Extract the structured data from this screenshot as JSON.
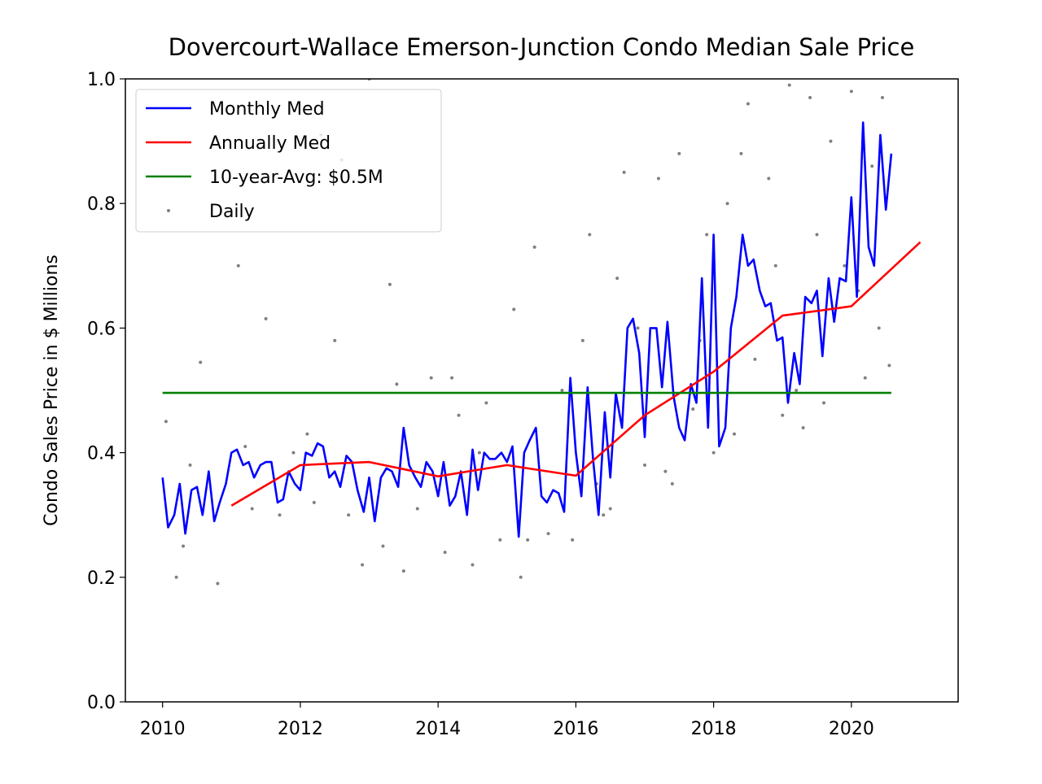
{
  "chart_data": {
    "type": "line",
    "title": "Dovercourt-Wallace Emerson-Junction Condo Median Sale Price",
    "ylabel": "Condo Sales Price in $ Millions",
    "xlim": [
      2009.46,
      2021.55
    ],
    "ylim": [
      0,
      1
    ],
    "xticks": [
      2010,
      2012,
      2014,
      2016,
      2018,
      2020
    ],
    "yticks": [
      {
        "value": 0,
        "label": "0.0"
      },
      0.2,
      0.4,
      0.6,
      0.8,
      {
        "value": 1,
        "label": "1.0"
      }
    ],
    "legend": "upper left",
    "series": [
      {
        "name": "Monthly Med",
        "color": "#0000ff",
        "x": [
          2010.0,
          2010.08,
          2010.17,
          2010.25,
          2010.33,
          2010.42,
          2010.5,
          2010.58,
          2010.67,
          2010.75,
          2010.83,
          2010.92,
          2011.0,
          2011.08,
          2011.17,
          2011.25,
          2011.33,
          2011.42,
          2011.5,
          2011.58,
          2011.67,
          2011.75,
          2011.83,
          2011.92,
          2012.0,
          2012.08,
          2012.17,
          2012.25,
          2012.33,
          2012.42,
          2012.5,
          2012.58,
          2012.67,
          2012.75,
          2012.83,
          2012.92,
          2013.0,
          2013.08,
          2013.17,
          2013.25,
          2013.33,
          2013.42,
          2013.5,
          2013.58,
          2013.67,
          2013.75,
          2013.83,
          2013.92,
          2014.0,
          2014.08,
          2014.17,
          2014.25,
          2014.33,
          2014.42,
          2014.5,
          2014.58,
          2014.67,
          2014.75,
          2014.83,
          2014.92,
          2015.0,
          2015.08,
          2015.17,
          2015.25,
          2015.33,
          2015.42,
          2015.5,
          2015.58,
          2015.67,
          2015.75,
          2015.83,
          2015.92,
          2016.0,
          2016.08,
          2016.17,
          2016.25,
          2016.33,
          2016.42,
          2016.5,
          2016.58,
          2016.67,
          2016.75,
          2016.83,
          2016.92,
          2017.0,
          2017.08,
          2017.17,
          2017.25,
          2017.33,
          2017.42,
          2017.5,
          2017.58,
          2017.67,
          2017.75,
          2017.83,
          2017.92,
          2018.0,
          2018.08,
          2018.17,
          2018.25,
          2018.33,
          2018.42,
          2018.5,
          2018.58,
          2018.67,
          2018.75,
          2018.83,
          2018.92,
          2019.0,
          2019.08,
          2019.17,
          2019.25,
          2019.33,
          2019.42,
          2019.5,
          2019.58,
          2019.67,
          2019.75,
          2019.83,
          2019.92,
          2020.0,
          2020.08,
          2020.17,
          2020.25,
          2020.33,
          2020.42,
          2020.5,
          2020.58
        ],
        "values": [
          0.36,
          0.28,
          0.3,
          0.35,
          0.27,
          0.34,
          0.345,
          0.3,
          0.37,
          0.29,
          0.32,
          0.35,
          0.4,
          0.405,
          0.38,
          0.385,
          0.36,
          0.38,
          0.385,
          0.385,
          0.32,
          0.325,
          0.37,
          0.35,
          0.34,
          0.4,
          0.395,
          0.415,
          0.41,
          0.36,
          0.37,
          0.345,
          0.395,
          0.385,
          0.34,
          0.305,
          0.36,
          0.29,
          0.36,
          0.375,
          0.37,
          0.345,
          0.44,
          0.38,
          0.36,
          0.345,
          0.385,
          0.37,
          0.33,
          0.385,
          0.315,
          0.33,
          0.37,
          0.3,
          0.405,
          0.34,
          0.4,
          0.39,
          0.39,
          0.4,
          0.385,
          0.41,
          0.265,
          0.4,
          0.42,
          0.44,
          0.33,
          0.32,
          0.34,
          0.335,
          0.305,
          0.52,
          0.4,
          0.33,
          0.505,
          0.39,
          0.3,
          0.465,
          0.36,
          0.495,
          0.44,
          0.6,
          0.615,
          0.56,
          0.425,
          0.6,
          0.6,
          0.505,
          0.61,
          0.49,
          0.44,
          0.42,
          0.51,
          0.48,
          0.68,
          0.44,
          0.75,
          0.41,
          0.44,
          0.6,
          0.65,
          0.75,
          0.7,
          0.71,
          0.66,
          0.635,
          0.64,
          0.58,
          0.585,
          0.48,
          0.56,
          0.51,
          0.65,
          0.64,
          0.66,
          0.555,
          0.68,
          0.61,
          0.68,
          0.675,
          0.81,
          0.65,
          0.93,
          0.73,
          0.7,
          0.91,
          0.79,
          0.88
        ]
      },
      {
        "name": "Annually Med",
        "color": "#ff0000",
        "x": [
          2011,
          2012,
          2013,
          2014,
          2015,
          2016,
          2017,
          2018,
          2019,
          2020,
          2021
        ],
        "values": [
          0.315,
          0.38,
          0.385,
          0.362,
          0.38,
          0.363,
          0.46,
          0.53,
          0.62,
          0.635,
          0.738
        ]
      },
      {
        "name": "10-year-Avg: $0.5M",
        "color": "#008000",
        "x": [
          2010,
          2020.58
        ],
        "values": [
          0.496,
          0.496
        ]
      },
      {
        "name": "Daily",
        "color": "#808080",
        "marker": "o",
        "x": [
          2010.05,
          2010.2,
          2010.4,
          2010.55,
          2010.8,
          2011.1,
          2011.3,
          2011.5,
          2011.7,
          2011.9,
          2012.1,
          2012.3,
          2012.5,
          2012.7,
          2012.9,
          2013.0,
          2013.2,
          2013.3,
          2013.5,
          2013.7,
          2013.9,
          2014.1,
          2014.3,
          2014.5,
          2014.7,
          2014.9,
          2015.1,
          2015.2,
          2015.4,
          2015.6,
          2015.8,
          2015.95,
          2016.1,
          2016.2,
          2016.4,
          2016.6,
          2016.7,
          2016.9,
          2017.0,
          2017.2,
          2017.4,
          2017.5,
          2017.7,
          2017.9,
          2018.0,
          2018.2,
          2018.3,
          2018.5,
          2018.6,
          2018.8,
          2019.0,
          2019.1,
          2019.3,
          2019.4,
          2019.6,
          2019.7,
          2019.9,
          2020.0,
          2020.2,
          2020.3,
          2020.45,
          2020.55,
          2010.3,
          2011.2,
          2012.2,
          2013.4,
          2014.2,
          2015.3,
          2016.3,
          2017.3,
          2018.4,
          2019.2,
          2020.1,
          2012.6,
          2014.6,
          2016.5,
          2017.8,
          2018.9,
          2019.5,
          2020.4
        ],
        "values": [
          0.45,
          0.2,
          0.38,
          0.545,
          0.19,
          0.7,
          0.31,
          0.615,
          0.3,
          0.4,
          0.43,
          0.91,
          0.58,
          0.3,
          0.22,
          1.0,
          0.25,
          0.67,
          0.21,
          0.31,
          0.52,
          0.24,
          0.46,
          0.22,
          0.48,
          0.26,
          0.63,
          0.2,
          0.73,
          0.27,
          0.5,
          0.26,
          0.58,
          0.75,
          0.3,
          0.68,
          0.85,
          0.6,
          0.38,
          0.84,
          0.35,
          0.88,
          0.47,
          0.75,
          0.4,
          0.8,
          0.43,
          0.96,
          0.55,
          0.84,
          0.46,
          0.99,
          0.44,
          0.97,
          0.48,
          0.9,
          0.7,
          0.98,
          0.52,
          0.86,
          0.97,
          0.54,
          0.25,
          0.41,
          0.32,
          0.51,
          0.52,
          0.26,
          0.35,
          0.37,
          0.88,
          0.5,
          0.66,
          0.87,
          0.4,
          0.31,
          0.58,
          0.7,
          0.75,
          0.6
        ]
      }
    ]
  }
}
